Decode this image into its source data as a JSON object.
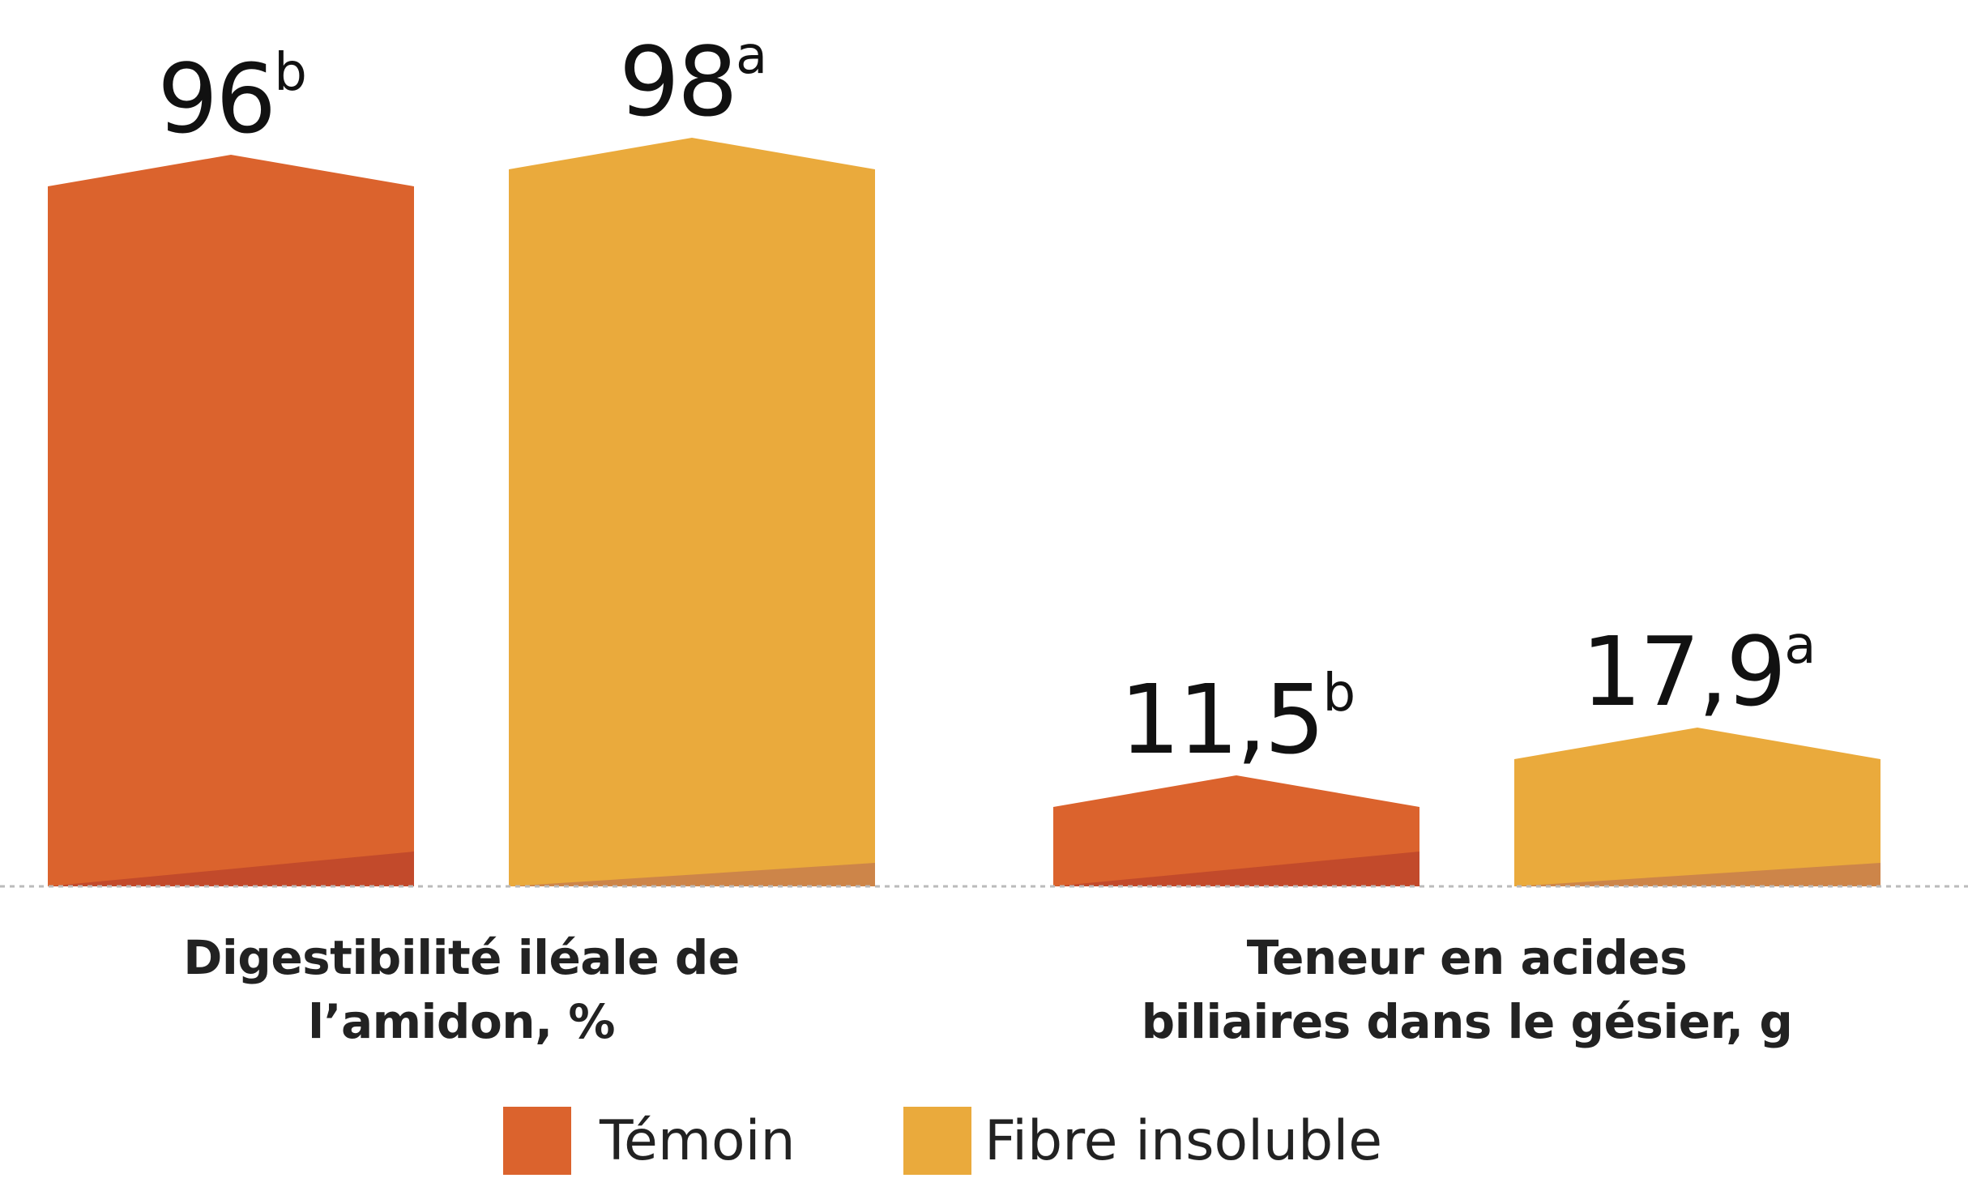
{
  "chart_data": {
    "type": "bar",
    "categories": [
      [
        "Digestibilité iléale de",
        "l’amidon, %"
      ],
      [
        "Teneur en acides",
        "biliaires dans le gésier, g"
      ]
    ],
    "series": [
      {
        "name": "Témoin",
        "color": "#DB632D",
        "shade": "#C24A2B",
        "labels": [
          "96",
          "11,5"
        ],
        "sups": [
          "b",
          "b"
        ]
      },
      {
        "name": "Fibre insoluble",
        "color": "#EAAA3C",
        "shade": "#CD8549",
        "labels": [
          "98",
          "17,9"
        ],
        "sups": [
          "a",
          "a"
        ]
      }
    ],
    "baseline_style": "dotted",
    "legend_position": "bottom"
  }
}
